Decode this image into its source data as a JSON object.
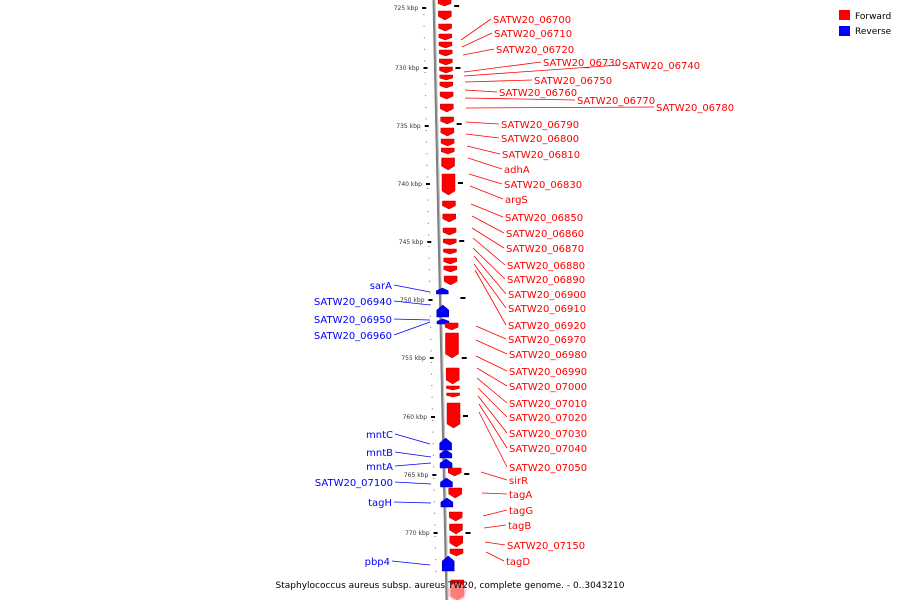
{
  "caption": "Staphylococcus aureus subsp. aureus TW20, complete genome. - 0..3043210",
  "legend": [
    {
      "label": "Forward",
      "color": "#ff0000"
    },
    {
      "label": "Reverse",
      "color": "#0000ff"
    }
  ],
  "colors": {
    "forward": "#ff0000",
    "reverse": "#0000ff",
    "backbone": "#808080"
  },
  "ticks": [
    "725 kbp",
    "730 kbp",
    "735 kbp",
    "740 kbp",
    "745 kbp",
    "750 kbp",
    "755 kbp",
    "760 kbp",
    "765 kbp",
    "770 kbp"
  ],
  "forward_genes": [
    "SATW20_06700",
    "SATW20_06710",
    "SATW20_06720",
    "SATW20_06730",
    "SATW20_06740",
    "SATW20_06750",
    "SATW20_06760",
    "SATW20_06770",
    "SATW20_06780",
    "SATW20_06790",
    "SATW20_06800",
    "SATW20_06810",
    "adhA",
    "SATW20_06830",
    "argS",
    "SATW20_06850",
    "SATW20_06860",
    "SATW20_06870",
    "SATW20_06880",
    "SATW20_06890",
    "SATW20_06900",
    "SATW20_06910",
    "SATW20_06920",
    "SATW20_06970",
    "SATW20_06980",
    "SATW20_06990",
    "SATW20_07000",
    "SATW20_07010",
    "SATW20_07020",
    "SATW20_07030",
    "SATW20_07040",
    "SATW20_07050",
    "sirR",
    "tagA",
    "tagG",
    "tagB",
    "SATW20_07150",
    "tagD"
  ],
  "reverse_genes": [
    "sarA",
    "SATW20_06940",
    "SATW20_06950",
    "SATW20_06960",
    "mntC",
    "mntB",
    "mntA",
    "SATW20_07100",
    "tagH",
    "pbp4"
  ]
}
